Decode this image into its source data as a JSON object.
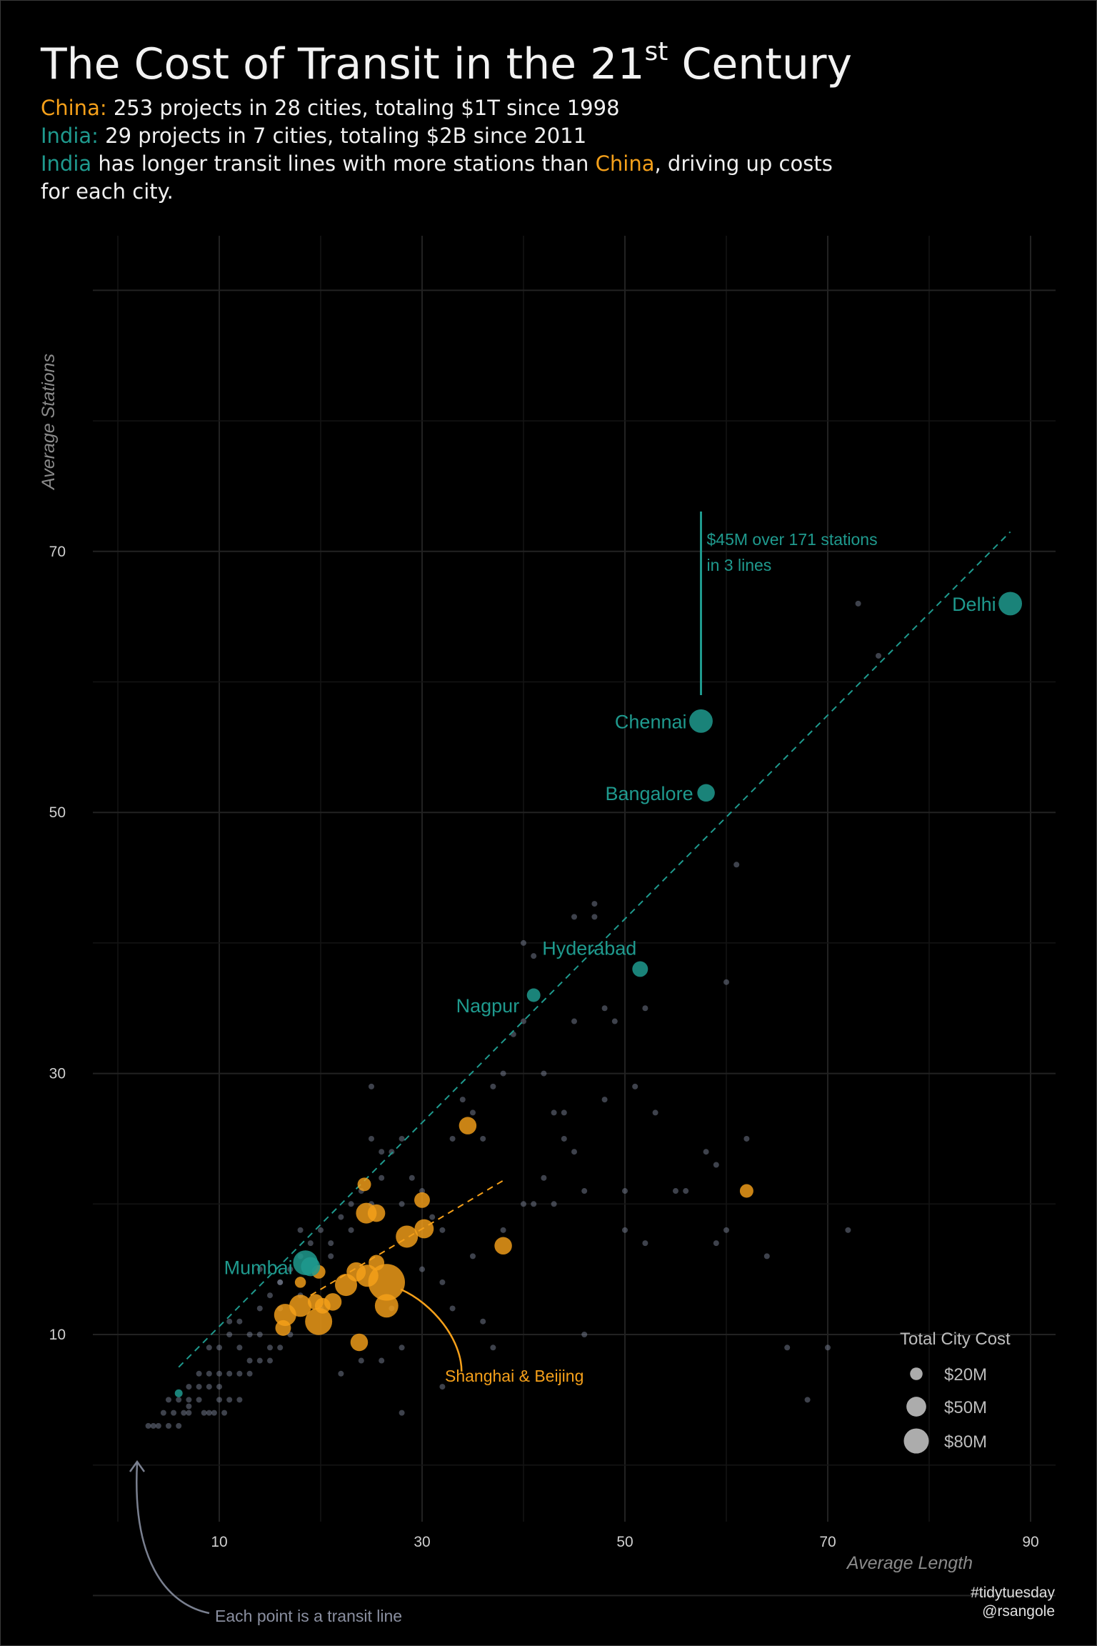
{
  "header": {
    "title_main": "The Cost of Transit in the 21",
    "title_sup": "st",
    "title_end": " Century",
    "china_label": "China:",
    "china_text": " 253 projects in 28 cities, totaling $1T since 1998",
    "india_label": "India:",
    "india_text": "  29 projects in 7 cities, totaling $2B since 2011",
    "line3_india": "India",
    "line3_mid": " has longer transit lines with more stations than ",
    "line3_china": "China",
    "line3_end": ", driving up costs",
    "line4": "for each city."
  },
  "colors": {
    "china": "#f5a01a",
    "india": "#1f9a8e",
    "line": "#8a93a8",
    "background": "#000000"
  },
  "chart_data": {
    "type": "scatter",
    "xlabel": "Average Length",
    "ylabel": "Average Stations",
    "xlim": [
      0,
      92
    ],
    "ylim": [
      -10,
      90
    ],
    "xticks": [
      10,
      30,
      50,
      70,
      90
    ],
    "yticks": [
      10,
      30,
      50,
      70
    ],
    "grid": true,
    "india_cities": [
      {
        "name": "Delhi",
        "x": 88,
        "y": 66,
        "cost": 45
      },
      {
        "name": "Chennai",
        "x": 57.5,
        "y": 57,
        "cost": 45
      },
      {
        "name": "Bangalore",
        "x": 58,
        "y": 51.5,
        "cost": 25
      },
      {
        "name": "Hyderabad",
        "x": 51.5,
        "y": 38,
        "cost": 20
      },
      {
        "name": "Nagpur",
        "x": 41,
        "y": 36,
        "cost": 15
      },
      {
        "name": "Mumbai",
        "x": 18.5,
        "y": 15.5,
        "cost": 50
      },
      {
        "name": "",
        "x": 19,
        "y": 15.2,
        "cost": 30
      },
      {
        "name": "",
        "x": 6,
        "y": 5.5,
        "cost": 5
      }
    ],
    "china_cities": [
      {
        "x": 26.5,
        "y": 14,
        "cost": 110
      },
      {
        "x": 26.5,
        "y": 12.2,
        "cost": 45
      },
      {
        "x": 24.5,
        "y": 19.3,
        "cost": 35
      },
      {
        "x": 25.5,
        "y": 19.3,
        "cost": 25
      },
      {
        "x": 28.5,
        "y": 17.5,
        "cost": 40
      },
      {
        "x": 30,
        "y": 20.3,
        "cost": 20
      },
      {
        "x": 30.2,
        "y": 18.1,
        "cost": 30
      },
      {
        "x": 24.3,
        "y": 21.5,
        "cost": 15
      },
      {
        "x": 34.5,
        "y": 26,
        "cost": 25
      },
      {
        "x": 38,
        "y": 16.8,
        "cost": 25
      },
      {
        "x": 62,
        "y": 21,
        "cost": 15
      },
      {
        "x": 23.5,
        "y": 14.8,
        "cost": 30
      },
      {
        "x": 24.6,
        "y": 14.5,
        "cost": 40
      },
      {
        "x": 22.5,
        "y": 13.8,
        "cost": 40
      },
      {
        "x": 21.2,
        "y": 12.5,
        "cost": 25
      },
      {
        "x": 19.8,
        "y": 11,
        "cost": 60
      },
      {
        "x": 18,
        "y": 12.2,
        "cost": 40
      },
      {
        "x": 16.5,
        "y": 11.5,
        "cost": 40
      },
      {
        "x": 16.3,
        "y": 10.5,
        "cost": 20
      },
      {
        "x": 19.5,
        "y": 12.5,
        "cost": 20
      },
      {
        "x": 20.2,
        "y": 12.2,
        "cost": 20
      },
      {
        "x": 23.8,
        "y": 9.4,
        "cost": 25
      },
      {
        "x": 18,
        "y": 14,
        "cost": 10
      },
      {
        "x": 19.8,
        "y": 14.8,
        "cost": 15
      },
      {
        "x": 25.5,
        "y": 15.5,
        "cost": 20
      }
    ],
    "lines": [
      [
        3,
        3
      ],
      [
        4,
        3
      ],
      [
        5,
        3
      ],
      [
        3.5,
        3
      ],
      [
        4.5,
        4
      ],
      [
        5.5,
        4
      ],
      [
        6,
        3
      ],
      [
        7,
        4
      ],
      [
        5,
        5
      ],
      [
        6,
        5
      ],
      [
        7,
        5
      ],
      [
        8,
        5
      ],
      [
        9,
        4
      ],
      [
        10,
        5
      ],
      [
        8,
        6
      ],
      [
        9,
        6
      ],
      [
        10,
        6
      ],
      [
        7,
        6
      ],
      [
        8,
        7
      ],
      [
        9,
        7
      ],
      [
        10,
        7
      ],
      [
        11,
        7
      ],
      [
        12,
        7
      ],
      [
        13,
        7
      ],
      [
        7,
        4.5
      ],
      [
        6.5,
        4
      ],
      [
        8.5,
        4
      ],
      [
        9.5,
        4
      ],
      [
        10.5,
        4
      ],
      [
        11,
        5
      ],
      [
        12,
        5
      ],
      [
        13,
        8
      ],
      [
        14,
        8
      ],
      [
        15,
        8
      ],
      [
        9,
        9
      ],
      [
        10,
        9
      ],
      [
        11,
        10
      ],
      [
        12,
        11
      ],
      [
        13,
        10
      ],
      [
        14,
        12
      ],
      [
        15,
        9
      ],
      [
        16,
        9
      ],
      [
        17,
        10
      ],
      [
        15,
        13
      ],
      [
        16,
        14
      ],
      [
        17,
        15
      ],
      [
        18,
        18
      ],
      [
        19,
        17
      ],
      [
        20,
        18
      ],
      [
        21,
        17
      ],
      [
        22,
        19
      ],
      [
        23,
        20
      ],
      [
        24,
        21
      ],
      [
        25,
        20
      ],
      [
        25,
        25
      ],
      [
        26,
        24
      ],
      [
        27,
        24
      ],
      [
        28,
        25
      ],
      [
        29,
        22
      ],
      [
        30,
        21
      ],
      [
        31,
        19
      ],
      [
        32,
        18
      ],
      [
        33,
        25
      ],
      [
        34,
        28
      ],
      [
        35,
        27
      ],
      [
        36,
        25
      ],
      [
        37,
        29
      ],
      [
        38,
        30
      ],
      [
        39,
        33
      ],
      [
        40,
        34
      ],
      [
        41,
        39
      ],
      [
        42,
        30
      ],
      [
        43,
        27
      ],
      [
        44,
        27
      ],
      [
        44,
        25
      ],
      [
        45,
        24
      ],
      [
        46,
        21
      ],
      [
        47,
        43
      ],
      [
        48,
        35
      ],
      [
        49,
        34
      ],
      [
        51,
        29
      ],
      [
        53,
        27
      ],
      [
        55,
        21
      ],
      [
        58,
        24
      ],
      [
        59,
        17
      ],
      [
        60,
        18
      ],
      [
        62,
        25
      ],
      [
        64,
        16
      ],
      [
        66,
        9
      ],
      [
        68,
        5
      ],
      [
        70,
        9
      ],
      [
        72,
        18
      ],
      [
        73,
        66
      ],
      [
        75,
        62
      ],
      [
        61,
        46
      ],
      [
        60,
        37
      ],
      [
        52,
        35
      ],
      [
        45,
        34
      ],
      [
        40,
        40
      ],
      [
        45,
        42
      ],
      [
        47,
        42
      ],
      [
        30,
        15
      ],
      [
        32,
        14
      ],
      [
        33,
        12
      ],
      [
        36,
        11
      ],
      [
        37,
        9
      ],
      [
        41,
        20
      ],
      [
        43,
        20
      ],
      [
        50,
        18
      ],
      [
        52,
        17
      ],
      [
        24,
        8
      ],
      [
        26,
        8
      ],
      [
        28,
        4
      ],
      [
        32,
        6
      ],
      [
        46,
        10
      ],
      [
        28,
        9
      ],
      [
        22,
        7
      ],
      [
        20,
        12
      ],
      [
        18,
        13
      ],
      [
        16,
        14
      ],
      [
        14,
        15
      ],
      [
        26,
        22
      ],
      [
        28,
        20
      ],
      [
        23,
        18
      ],
      [
        21,
        16
      ],
      [
        35,
        16
      ],
      [
        38,
        18
      ],
      [
        40,
        20
      ],
      [
        42,
        22
      ],
      [
        56,
        21
      ],
      [
        59,
        23
      ],
      [
        50,
        21
      ],
      [
        48,
        28
      ],
      [
        25,
        29
      ],
      [
        27,
        12
      ],
      [
        12,
        9
      ],
      [
        11,
        11
      ],
      [
        14,
        10
      ],
      [
        16,
        12
      ],
      [
        18,
        16
      ]
    ],
    "trend_india": [
      [
        6,
        7.5
      ],
      [
        88,
        71.5
      ]
    ],
    "trend_china": [
      [
        19,
        13
      ],
      [
        38,
        21.8
      ]
    ],
    "annotation_text_1": "$45M over 171 stations",
    "annotation_text_2": "in 3 lines",
    "shanghai_label": "Shanghai & Beijing",
    "points_note": "Each point is a transit line",
    "legend_title": "Total City Cost",
    "legend": [
      {
        "label": "$20M",
        "cost": 20
      },
      {
        "label": "$50M",
        "cost": 50
      },
      {
        "label": "$80M",
        "cost": 80
      }
    ]
  },
  "credits": {
    "tag": "#tidytuesday",
    "handle": "@rsangole"
  }
}
